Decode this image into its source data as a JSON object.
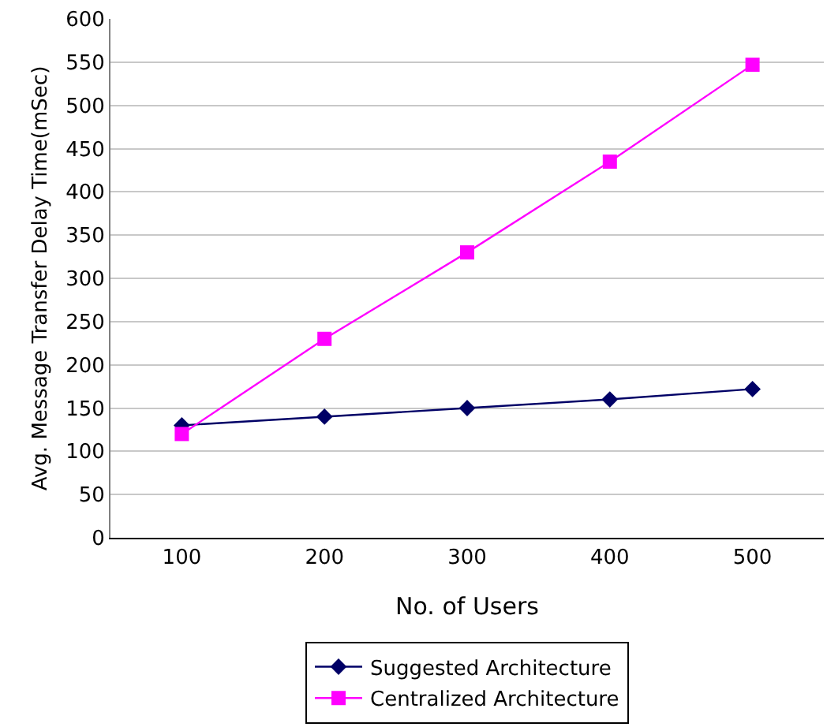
{
  "chart_data": {
    "type": "line",
    "xlabel": "No. of Users",
    "ylabel": "Avg. Message Transfer Delay Time(mSec)",
    "categories": [
      "100",
      "200",
      "300",
      "400",
      "500"
    ],
    "series": [
      {
        "name": "Suggested Architecture",
        "color": "#000066",
        "marker": "diamond",
        "values": [
          130,
          140,
          150,
          160,
          172
        ]
      },
      {
        "name": "Centralized Architecture",
        "color": "#ff00ff",
        "marker": "square",
        "values": [
          120,
          230,
          330,
          435,
          547
        ]
      }
    ],
    "ylim": [
      0,
      600
    ],
    "yticks": [
      0,
      50,
      100,
      150,
      200,
      250,
      300,
      350,
      400,
      450,
      500,
      550,
      600
    ],
    "grid": "y",
    "legend": "bottom",
    "line_style": "solid"
  }
}
